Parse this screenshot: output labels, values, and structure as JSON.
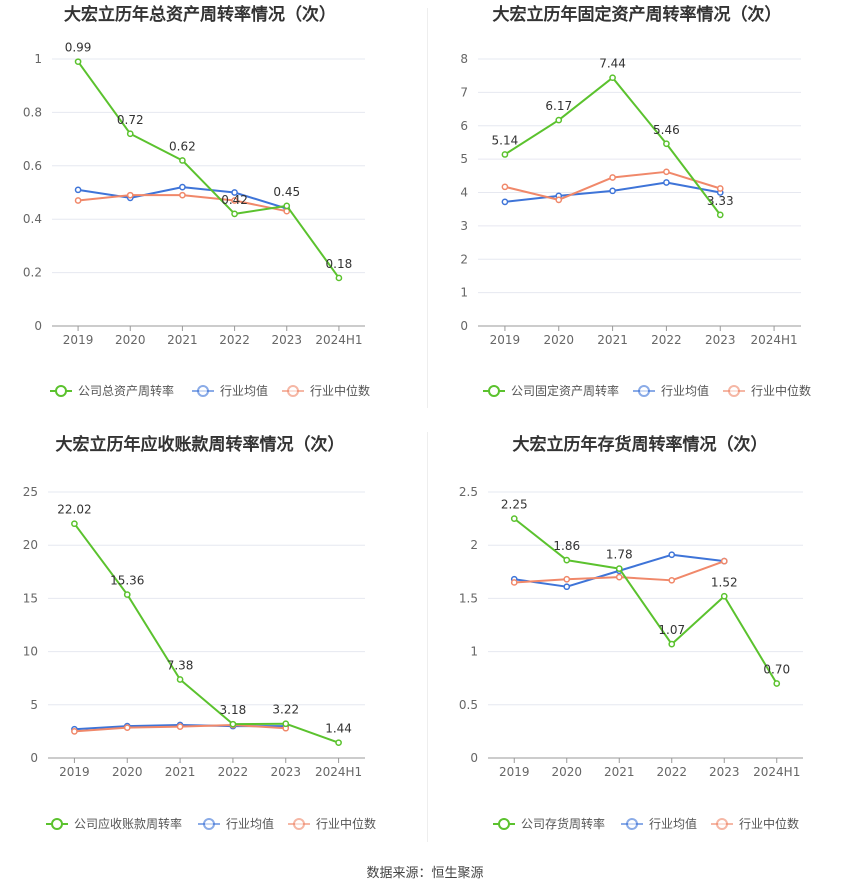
{
  "colors": {
    "company": "#5bc22e",
    "industry_avg": "#3e74d8",
    "industry_median": "#f0886a",
    "grid": "#e6e8f0",
    "axis": "#999999"
  },
  "source_text": "数据来源：恒生聚源",
  "chart_data": [
    {
      "type": "line",
      "title": "大宏立历年总资产周转率情况（次）",
      "categories": [
        "2019",
        "2020",
        "2021",
        "2022",
        "2023",
        "2024H1"
      ],
      "ylim": [
        0,
        1
      ],
      "yticks": [
        "0",
        "0.2",
        "0.4",
        "0.6",
        "0.8",
        "1"
      ],
      "series": [
        {
          "name": "公司总资产周转率",
          "color": "#5bc22e",
          "values": [
            0.99,
            0.72,
            0.62,
            0.42,
            0.45,
            0.18
          ],
          "labels": [
            "0.99",
            "0.72",
            "0.62",
            "0.42",
            "0.45",
            "0.18"
          ]
        },
        {
          "name": "行业均值",
          "color": "#3e74d8",
          "values": [
            0.51,
            0.48,
            0.52,
            0.5,
            0.44,
            null
          ]
        },
        {
          "name": "行业中位数",
          "color": "#f0886a",
          "values": [
            0.47,
            0.49,
            0.49,
            0.47,
            0.43,
            null
          ]
        }
      ],
      "grid": true,
      "legend": "bottom"
    },
    {
      "type": "line",
      "title": "大宏立历年固定资产周转率情况（次）",
      "categories": [
        "2019",
        "2020",
        "2021",
        "2022",
        "2023",
        "2024H1"
      ],
      "ylim": [
        0,
        8
      ],
      "yticks": [
        "0",
        "1",
        "2",
        "3",
        "4",
        "5",
        "6",
        "7",
        "8"
      ],
      "series": [
        {
          "name": "公司固定资产周转率",
          "color": "#5bc22e",
          "values": [
            5.14,
            6.17,
            7.44,
            5.46,
            3.33,
            null
          ],
          "labels": [
            "5.14",
            "6.17",
            "7.44",
            "5.46",
            "3.33",
            null
          ]
        },
        {
          "name": "行业均值",
          "color": "#3e74d8",
          "values": [
            3.72,
            3.9,
            4.05,
            4.3,
            4.0,
            null
          ]
        },
        {
          "name": "行业中位数",
          "color": "#f0886a",
          "values": [
            4.17,
            3.78,
            4.45,
            4.62,
            4.12,
            null
          ]
        }
      ],
      "grid": true,
      "legend": "bottom"
    },
    {
      "type": "line",
      "title": "大宏立历年应收账款周转率情况（次）",
      "categories": [
        "2019",
        "2020",
        "2021",
        "2022",
        "2023",
        "2024H1"
      ],
      "ylim": [
        0,
        25
      ],
      "yticks": [
        "0",
        "5",
        "10",
        "15",
        "20",
        "25"
      ],
      "series": [
        {
          "name": "公司应收账款周转率",
          "color": "#5bc22e",
          "values": [
            22.02,
            15.36,
            7.38,
            3.18,
            3.22,
            1.44
          ],
          "labels": [
            "22.02",
            "15.36",
            "7.38",
            "3.18",
            "3.22",
            "1.44"
          ]
        },
        {
          "name": "行业均值",
          "color": "#3e74d8",
          "values": [
            2.7,
            3.0,
            3.1,
            3.0,
            3.0,
            null
          ]
        },
        {
          "name": "行业中位数",
          "color": "#f0886a",
          "values": [
            2.5,
            2.85,
            2.95,
            3.1,
            2.8,
            null
          ]
        }
      ],
      "grid": true,
      "legend": "bottom"
    },
    {
      "type": "line",
      "title": "大宏立历年存货周转率情况（次）",
      "categories": [
        "2019",
        "2020",
        "2021",
        "2022",
        "2023",
        "2024H1"
      ],
      "ylim": [
        0,
        2.5
      ],
      "yticks": [
        "0",
        "0.5",
        "1",
        "1.5",
        "2",
        "2.5"
      ],
      "series": [
        {
          "name": "公司存货周转率",
          "color": "#5bc22e",
          "values": [
            2.25,
            1.86,
            1.78,
            1.07,
            1.52,
            0.7
          ],
          "labels": [
            "2.25",
            "1.86",
            "1.78",
            "1.07",
            "1.52",
            "0.70"
          ]
        },
        {
          "name": "行业均值",
          "color": "#3e74d8",
          "values": [
            1.68,
            1.61,
            1.76,
            1.91,
            1.85,
            null
          ]
        },
        {
          "name": "行业中位数",
          "color": "#f0886a",
          "values": [
            1.65,
            1.68,
            1.7,
            1.67,
            1.85,
            null
          ]
        }
      ],
      "grid": true,
      "legend": "bottom"
    }
  ]
}
